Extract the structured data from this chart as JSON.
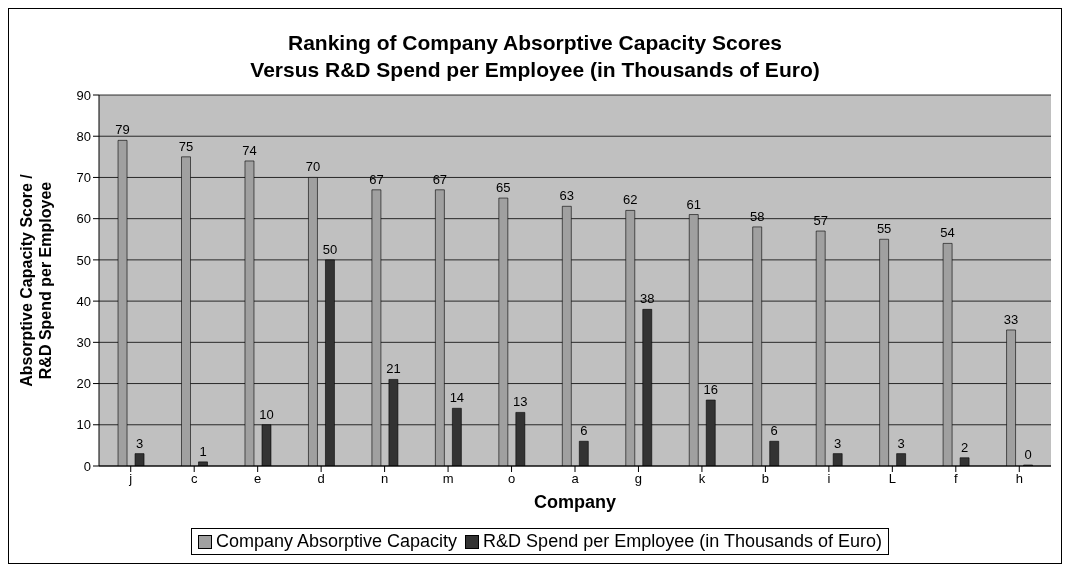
{
  "chart_data": {
    "type": "bar",
    "title": "Ranking of Company Absorptive Capacity Scores\nVersus R&D Spend per Employee (in Thousands of Euro)",
    "xlabel": "Company",
    "ylabel": "Absorptive Capacity Score /\nR&D Spend per Employee",
    "categories": [
      "j",
      "c",
      "e",
      "d",
      "n",
      "m",
      "o",
      "a",
      "g",
      "k",
      "b",
      "i",
      "L",
      "f",
      "h"
    ],
    "series": [
      {
        "name": "Company Absorptive Capacity",
        "color": "#a0a0a0",
        "values": [
          79,
          75,
          74,
          70,
          67,
          67,
          65,
          63,
          62,
          61,
          58,
          57,
          55,
          54,
          33
        ]
      },
      {
        "name": "R&D Spend per Employee (in Thousands of Euro)",
        "color": "#333333",
        "values": [
          3,
          1,
          10,
          50,
          21,
          14,
          13,
          6,
          38,
          16,
          6,
          3,
          3,
          2,
          0
        ]
      }
    ],
    "ylim": [
      0,
      90
    ],
    "yticks": [
      0,
      10,
      20,
      30,
      40,
      50,
      60,
      70,
      80,
      90
    ],
    "grid": "y",
    "legend": "bottom",
    "data_labels": true
  }
}
